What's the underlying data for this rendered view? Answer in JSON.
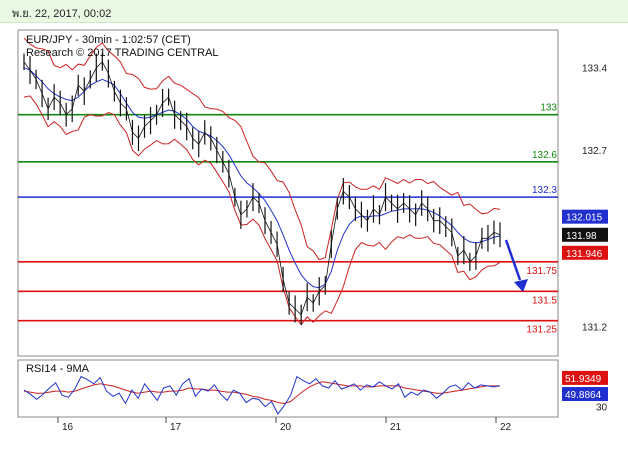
{
  "header": {
    "date_text": "พ.ย. 22, 2017, 00:02"
  },
  "chart_data": [
    {
      "type": "line",
      "title": "EUR/JPY - 30min - 1:02:57 (CET)",
      "subtitle": "Research © 2017 TRADING CENTRAL",
      "x_tick_labels": [
        "16",
        "17",
        "20",
        "21",
        "22"
      ],
      "y_tick_labels": [
        "133.4",
        "132.7",
        "131.2"
      ],
      "ylim": [
        130.95,
        133.72
      ],
      "levels": [
        {
          "label": "133",
          "value": 133.0,
          "color": "#118811"
        },
        {
          "label": "132.6",
          "value": 132.6,
          "color": "#118811"
        },
        {
          "label": "132.3",
          "value": 132.3,
          "color": "#1f2fd0"
        },
        {
          "label": "131.75",
          "value": 131.75,
          "color": "#dd1111"
        },
        {
          "label": "131.5",
          "value": 131.5,
          "color": "#dd1111"
        },
        {
          "label": "131.25",
          "value": 131.25,
          "color": "#dd1111"
        }
      ],
      "price_tags": [
        {
          "label": "132.015",
          "value": 132.015,
          "bg": "#1f2fd0",
          "fg": "#ffffff"
        },
        {
          "label": "131.98",
          "value": 131.98,
          "bg": "#111111",
          "fg": "#ffffff"
        },
        {
          "label": "131.946",
          "value": 131.946,
          "bg": "#dd1111",
          "fg": "#ffffff"
        }
      ],
      "price_series": [
        133.45,
        133.38,
        133.3,
        133.18,
        133.05,
        133.15,
        133.1,
        133.0,
        133.05,
        133.25,
        133.2,
        133.3,
        133.4,
        133.45,
        133.35,
        133.2,
        133.1,
        133.05,
        132.85,
        132.8,
        132.9,
        132.95,
        133.0,
        133.1,
        133.15,
        133.0,
        132.95,
        132.9,
        132.8,
        132.75,
        132.85,
        132.8,
        132.7,
        132.6,
        132.5,
        132.3,
        132.15,
        132.2,
        132.3,
        132.25,
        132.1,
        132.0,
        131.9,
        131.6,
        131.4,
        131.35,
        131.3,
        131.45,
        131.4,
        131.5,
        131.55,
        131.9,
        132.2,
        132.35,
        132.3,
        132.2,
        132.15,
        132.1,
        132.2,
        132.15,
        132.3,
        132.25,
        132.2,
        132.25,
        132.2,
        132.15,
        132.25,
        132.2,
        132.1,
        132.1,
        132.05,
        132.0,
        131.8,
        131.85,
        131.75,
        131.8,
        131.95,
        131.95,
        132.0,
        131.98
      ],
      "ma_series": [
        133.4,
        133.38,
        133.33,
        133.28,
        133.22,
        133.18,
        133.15,
        133.13,
        133.12,
        133.15,
        133.2,
        133.25,
        133.28,
        133.3,
        133.28,
        133.25,
        133.18,
        133.1,
        133.02,
        132.98,
        132.97,
        132.98,
        133.0,
        133.02,
        133.04,
        133.03,
        133.0,
        132.96,
        132.9,
        132.86,
        132.84,
        132.82,
        132.78,
        132.73,
        132.66,
        132.57,
        132.48,
        132.42,
        132.38,
        132.33,
        132.27,
        132.19,
        132.1,
        131.98,
        131.85,
        131.74,
        131.64,
        131.58,
        131.54,
        131.53,
        131.56,
        131.67,
        131.85,
        131.98,
        132.07,
        132.12,
        132.14,
        132.13,
        132.14,
        132.14,
        132.16,
        132.18,
        132.19,
        132.2,
        132.2,
        132.2,
        132.2,
        132.19,
        132.17,
        132.14,
        132.1,
        132.06,
        132.0,
        131.95,
        131.92,
        131.91,
        131.92,
        131.94,
        131.96,
        131.97
      ]
    },
    {
      "type": "line",
      "title": "RSI14 - 9MA",
      "y_tick_labels": [
        "30"
      ],
      "ylim": [
        20,
        75
      ],
      "price_tags": [
        {
          "label": "51.9349",
          "value": 51.9349,
          "bg": "#dd1111",
          "fg": "#ffffff"
        },
        {
          "label": "49.8864",
          "value": 49.8864,
          "bg": "#1f2fd0",
          "fg": "#ffffff"
        }
      ],
      "rsi_series": [
        46,
        42,
        37,
        42,
        48,
        53,
        41,
        39,
        47,
        59,
        56,
        52,
        58,
        45,
        40,
        43,
        33,
        46,
        38,
        52,
        44,
        36,
        48,
        50,
        41,
        52,
        57,
        40,
        47,
        45,
        51,
        42,
        36,
        46,
        43,
        34,
        38,
        37,
        30,
        35,
        23,
        31,
        41,
        59,
        55,
        52,
        57,
        50,
        48,
        55,
        47,
        49,
        52,
        46,
        51,
        49,
        54,
        50,
        47,
        52,
        39,
        44,
        41,
        46,
        44,
        38,
        43,
        49,
        51,
        46,
        53,
        48,
        51,
        50,
        49,
        50
      ],
      "ma_series": [
        45,
        44,
        43,
        43,
        44,
        45,
        45,
        44,
        45,
        47,
        49,
        51,
        52,
        51,
        50,
        48,
        46,
        44,
        43,
        44,
        45,
        44,
        44,
        45,
        45,
        46,
        48,
        47,
        47,
        46,
        46,
        45,
        44,
        44,
        43,
        42,
        40,
        39,
        37,
        36,
        34,
        33,
        35,
        40,
        45,
        49,
        52,
        54,
        53,
        52,
        51,
        50,
        50,
        50,
        49,
        49,
        50,
        50,
        50,
        50,
        48,
        47,
        46,
        45,
        44,
        43,
        43,
        44,
        45,
        46,
        47,
        48,
        49,
        50,
        50,
        50
      ]
    }
  ]
}
